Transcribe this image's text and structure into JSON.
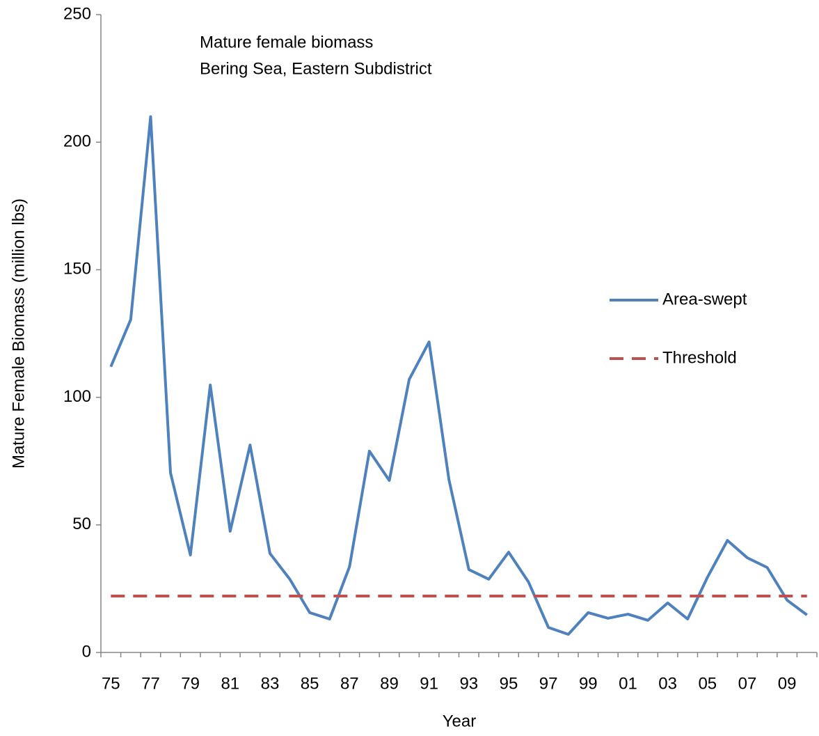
{
  "chart_data": {
    "type": "line",
    "annotation": [
      "Mature female biomass",
      "Bering Sea, Eastern Subdistrict"
    ],
    "xlabel": "Year",
    "ylabel": "Mature Female Biomass (million lbs)",
    "categories": [
      "75",
      null,
      "77",
      null,
      "79",
      null,
      "81",
      null,
      "83",
      null,
      "85",
      null,
      "87",
      null,
      "89",
      null,
      "91",
      null,
      "93",
      null,
      "95",
      null,
      "97",
      null,
      "99",
      null,
      "01",
      null,
      "03",
      null,
      "05",
      null,
      "07",
      null,
      "09",
      null
    ],
    "series": [
      {
        "name": "Area-swept",
        "color": "#4f81bd",
        "dashed": false,
        "values": [
          112,
          130.5,
          210,
          70.4,
          38.2,
          104.8,
          47.5,
          81.3,
          38.8,
          28.7,
          15.6,
          13.1,
          33.6,
          78.9,
          67.4,
          107,
          121.7,
          67.7,
          32.5,
          28.7,
          39.3,
          27.6,
          9.8,
          7.1,
          15.6,
          13.4,
          15,
          12.6,
          19.4,
          13.1,
          29.5,
          43.9,
          37.1,
          33.3,
          20.5,
          14.7
        ]
      },
      {
        "name": "Threshold",
        "color": "#c0504d",
        "dashed": true,
        "values": [
          22.1,
          22.1,
          22.1,
          22.1,
          22.1,
          22.1,
          22.1,
          22.1,
          22.1,
          22.1,
          22.1,
          22.1,
          22.1,
          22.1,
          22.1,
          22.1,
          22.1,
          22.1,
          22.1,
          22.1,
          22.1,
          22.1,
          22.1,
          22.1,
          22.1,
          22.1,
          22.1,
          22.1,
          22.1,
          22.1,
          22.1,
          22.1,
          22.1,
          22.1,
          22.1,
          22.1
        ]
      }
    ],
    "ylim": [
      0,
      250
    ],
    "yticks": [
      0,
      50,
      100,
      150,
      200,
      250
    ],
    "grid": false,
    "legend": "right"
  }
}
